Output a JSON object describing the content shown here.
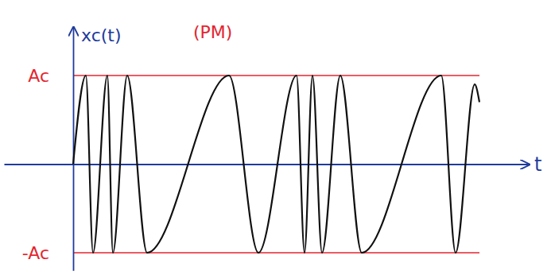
{
  "chart_data": {
    "type": "line",
    "title": "(PM)",
    "y_label": "xc(t)",
    "x_label": "t",
    "x": [
      0,
      16,
      25,
      43,
      50,
      68,
      93,
      196,
      233,
      281,
      291,
      301,
      313,
      336,
      363,
      463,
      481,
      505,
      511
    ],
    "values": [
      0,
      1,
      -1,
      1,
      -1,
      1,
      -1,
      1,
      -1,
      1,
      -1,
      1,
      -1,
      1,
      -1,
      1,
      -1,
      0.9,
      0.7
    ],
    "color": "#111111",
    "xlim": [
      -87,
      573
    ],
    "ylim": [
      -1.2,
      1.55
    ],
    "yticks": [
      {
        "value": 1,
        "label": "Ac"
      },
      {
        "value": -1,
        "label": "-Ac"
      }
    ],
    "grid": true,
    "tick_labels": "y"
  }
}
